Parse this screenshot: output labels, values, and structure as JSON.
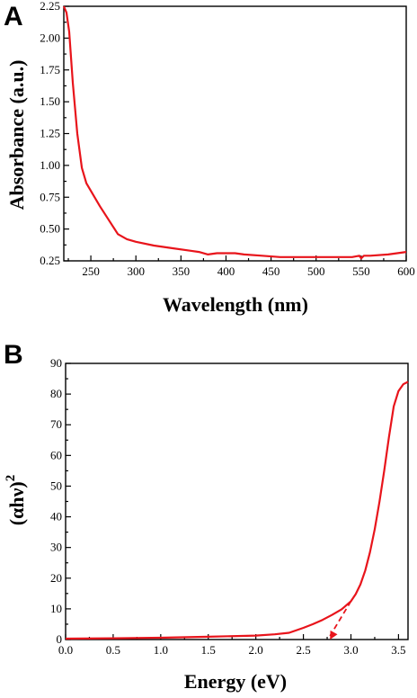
{
  "chart_data": [
    {
      "type": "line",
      "panel_label": "A",
      "xlabel": "Wavelength (nm)",
      "ylabel": "Absorbance (a.u.)",
      "xlim": [
        220,
        600
      ],
      "ylim": [
        0.25,
        2.25
      ],
      "xticks": [
        250,
        300,
        350,
        400,
        450,
        500,
        550,
        600
      ],
      "yticks": [
        0.25,
        0.5,
        0.75,
        1.0,
        1.25,
        1.5,
        1.75,
        2.0,
        2.25
      ],
      "ytick_labels": [
        "0.25",
        "0.50",
        "0.75",
        "1.00",
        "1.25",
        "1.50",
        "1.75",
        "2.00",
        "2.25"
      ],
      "xtick_labels": [
        "250",
        "300",
        "350",
        "400",
        "450",
        "500",
        "550",
        "600"
      ],
      "color": "#e8141b",
      "series": [
        {
          "x": [
            220,
            223,
            226,
            230,
            235,
            240,
            245,
            250,
            260,
            270,
            280,
            290,
            300,
            320,
            340,
            360,
            370,
            380,
            390,
            400,
            410,
            420,
            440,
            460,
            480,
            500,
            520,
            540,
            548,
            550,
            553,
            560,
            580,
            600
          ],
          "y": [
            2.25,
            2.2,
            2.05,
            1.65,
            1.25,
            0.98,
            0.86,
            0.8,
            0.68,
            0.57,
            0.46,
            0.42,
            0.4,
            0.37,
            0.35,
            0.33,
            0.32,
            0.3,
            0.31,
            0.31,
            0.31,
            0.3,
            0.29,
            0.28,
            0.28,
            0.28,
            0.28,
            0.28,
            0.29,
            0.27,
            0.29,
            0.29,
            0.3,
            0.32
          ]
        }
      ]
    },
    {
      "type": "line",
      "panel_label": "B",
      "xlabel": "Energy (eV)",
      "ylabel": "(αhν)",
      "ylabel_superscript": "2",
      "xlim": [
        0,
        3.6
      ],
      "ylim": [
        0,
        90
      ],
      "xticks": [
        0,
        0.5,
        1.0,
        1.5,
        2.0,
        2.5,
        3.0,
        3.5
      ],
      "xtick_labels": [
        "0.0",
        "0.5",
        "1.0",
        "1.5",
        "2.0",
        "2.5",
        "3.0",
        "3.5"
      ],
      "yticks": [
        0,
        10,
        20,
        30,
        40,
        50,
        60,
        70,
        80,
        90
      ],
      "ytick_labels": [
        "0",
        "10",
        "20",
        "30",
        "40",
        "50",
        "60",
        "70",
        "80",
        "90"
      ],
      "color": "#e8141b",
      "series": [
        {
          "x": [
            0,
            0.5,
            1.0,
            1.5,
            2.0,
            2.2,
            2.35,
            2.5,
            2.6,
            2.7,
            2.8,
            2.9,
            3.0,
            3.05,
            3.1,
            3.15,
            3.2,
            3.25,
            3.3,
            3.35,
            3.4,
            3.45,
            3.5,
            3.55,
            3.6
          ],
          "y": [
            0.3,
            0.4,
            0.6,
            0.9,
            1.3,
            1.7,
            2.2,
            3.8,
            5.0,
            6.4,
            8.0,
            9.8,
            12.5,
            14.8,
            18.0,
            22.5,
            28.5,
            36.0,
            45.0,
            55.0,
            66.0,
            76.0,
            81.0,
            83.2,
            84.0
          ]
        }
      ],
      "extrapolation": {
        "x": [
          2.78,
          3.0
        ],
        "y": [
          0,
          12.5
        ],
        "style": "dashed"
      }
    }
  ]
}
